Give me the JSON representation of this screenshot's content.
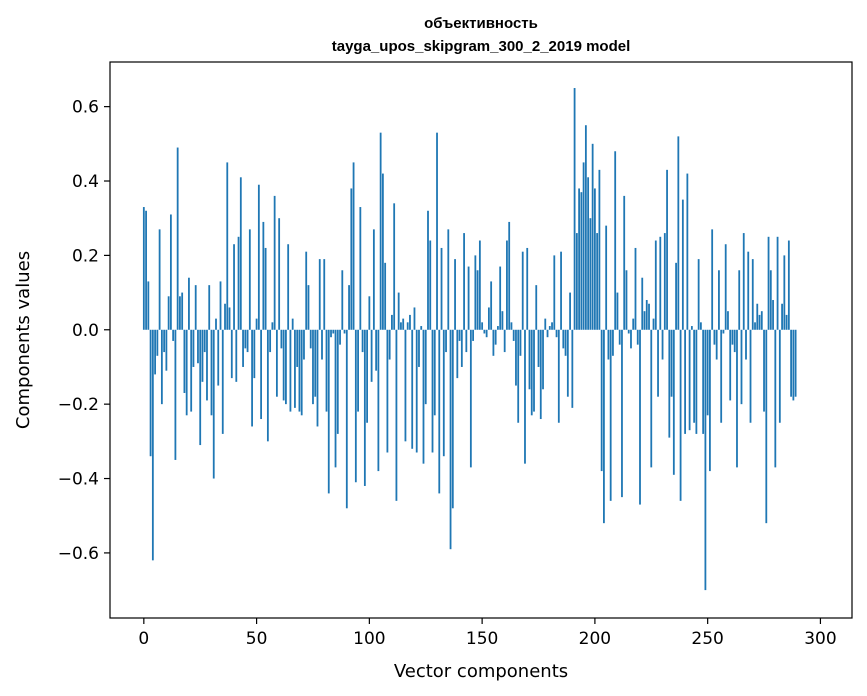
{
  "chart_data": {
    "type": "bar",
    "title": "объективность",
    "subtitle": "tayga_upos_skipgram_300_2_2019 model",
    "xlabel": "Vector components",
    "ylabel": "Components values",
    "xlim": [
      -15,
      314
    ],
    "ylim": [
      -0.775,
      0.72
    ],
    "xticks": [
      0,
      50,
      100,
      150,
      200,
      250,
      300
    ],
    "xtick_labels": [
      "0",
      "50",
      "100",
      "150",
      "200",
      "250",
      "300"
    ],
    "yticks": [
      -0.6,
      -0.4,
      -0.2,
      0.0,
      0.2,
      0.4,
      0.6
    ],
    "ytick_labels": [
      "−0.6",
      "−0.4",
      "−0.2",
      "0.0",
      "0.2",
      "0.4",
      "0.6"
    ],
    "bar_color": "#1f77b4",
    "grid": false,
    "values": [
      0.33,
      0.32,
      0.13,
      -0.34,
      -0.62,
      -0.12,
      -0.07,
      0.27,
      -0.2,
      -0.06,
      -0.11,
      0.09,
      0.31,
      -0.03,
      -0.35,
      0.49,
      0.09,
      0.1,
      -0.17,
      -0.23,
      0.14,
      -0.22,
      -0.1,
      0.12,
      -0.09,
      -0.31,
      -0.14,
      -0.06,
      -0.19,
      0.12,
      -0.23,
      -0.4,
      0.03,
      -0.15,
      0.13,
      -0.28,
      0.07,
      0.45,
      0.06,
      -0.13,
      0.23,
      -0.14,
      0.25,
      0.41,
      -0.1,
      -0.05,
      -0.06,
      0.27,
      -0.26,
      -0.13,
      0.03,
      0.39,
      -0.24,
      0.29,
      0.22,
      -0.3,
      -0.06,
      0.02,
      0.36,
      -0.18,
      0.3,
      -0.05,
      -0.19,
      -0.2,
      0.23,
      -0.22,
      0.03,
      -0.21,
      -0.1,
      -0.22,
      -0.23,
      -0.08,
      0.21,
      0.12,
      -0.05,
      -0.2,
      -0.18,
      -0.26,
      0.19,
      -0.08,
      0.19,
      -0.22,
      -0.44,
      -0.02,
      -0.01,
      -0.37,
      -0.28,
      -0.04,
      0.16,
      -0.01,
      -0.48,
      0.12,
      0.38,
      0.45,
      -0.41,
      -0.22,
      0.33,
      -0.06,
      -0.42,
      -0.25,
      0.09,
      -0.14,
      0.27,
      -0.11,
      -0.38,
      0.53,
      0.42,
      0.18,
      -0.33,
      -0.08,
      0.04,
      0.34,
      -0.46,
      0.1,
      0.02,
      0.03,
      -0.3,
      0.02,
      0.04,
      -0.32,
      0.06,
      -0.33,
      -0.1,
      0.01,
      -0.36,
      -0.2,
      0.32,
      0.24,
      -0.33,
      -0.23,
      0.53,
      -0.44,
      0.22,
      -0.34,
      -0.06,
      0.27,
      -0.59,
      -0.48,
      0.19,
      -0.13,
      -0.03,
      -0.1,
      0.26,
      -0.06,
      0.17,
      -0.37,
      -0.03,
      0.2,
      0.16,
      0.24,
      0.02,
      -0.01,
      -0.02,
      0.06,
      0.13,
      -0.07,
      -0.04,
      0.01,
      0.17,
      0.05,
      -0.06,
      0.24,
      0.29,
      0.02,
      -0.03,
      -0.15,
      -0.25,
      -0.07,
      0.21,
      -0.36,
      0.22,
      -0.16,
      -0.23,
      -0.22,
      0.12,
      -0.1,
      -0.24,
      -0.16,
      0.03,
      -0.02,
      0.01,
      0.02,
      0.2,
      -0.02,
      -0.25,
      0.21,
      -0.05,
      -0.07,
      -0.18,
      0.1,
      -0.21,
      0.65,
      0.26,
      0.38,
      0.37,
      0.45,
      0.55,
      0.41,
      0.3,
      0.5,
      0.38,
      0.26,
      0.43,
      -0.38,
      -0.52,
      0.28,
      -0.08,
      -0.46,
      -0.07,
      0.48,
      0.1,
      -0.04,
      -0.45,
      0.36,
      0.16,
      -0.01,
      -0.05,
      0.03,
      0.22,
      -0.04,
      -0.47,
      0.14,
      0.05,
      0.08,
      0.07,
      -0.37,
      0.03,
      0.24,
      -0.18,
      0.25,
      -0.08,
      0.26,
      0.43,
      -0.29,
      -0.18,
      -0.39,
      0.18,
      0.52,
      -0.46,
      0.35,
      -0.28,
      0.42,
      -0.27,
      0.01,
      -0.25,
      -0.28,
      0.19,
      0.02,
      -0.28,
      -0.7,
      -0.23,
      -0.38,
      0.27,
      -0.04,
      -0.08,
      0.16,
      -0.25,
      -0.01,
      0.23,
      0.05,
      -0.19,
      -0.04,
      -0.06,
      -0.37,
      0.16,
      -0.2,
      0.26,
      -0.08,
      0.21,
      -0.25,
      0.19,
      0.02,
      0.07,
      0.04,
      0.05,
      -0.22,
      -0.52,
      0.25,
      0.16,
      0.08,
      -0.37,
      0.25,
      -0.25,
      0.07,
      0.2,
      0.04,
      0.24,
      -0.18,
      -0.19,
      -0.18
    ]
  }
}
